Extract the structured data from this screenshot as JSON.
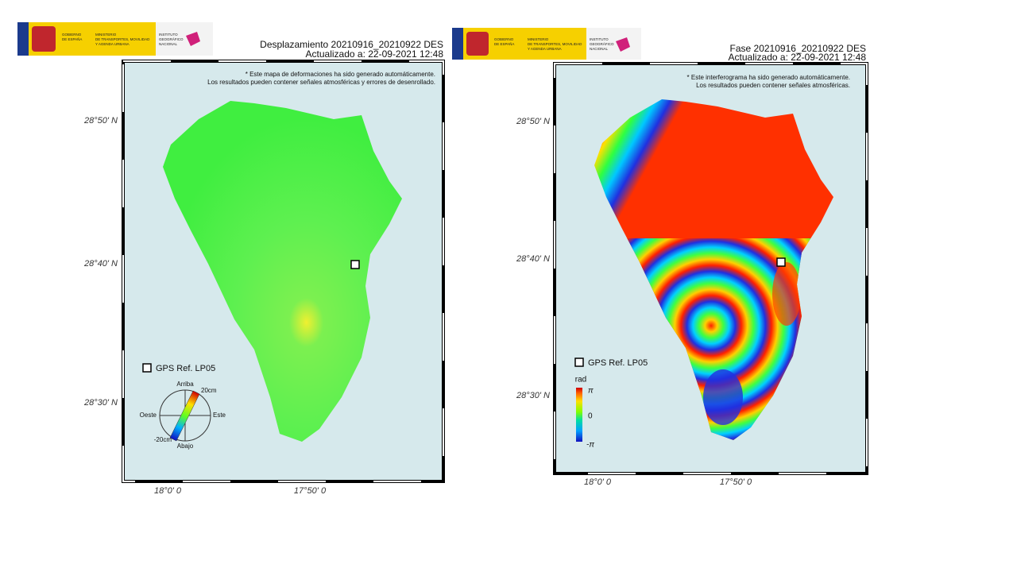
{
  "logo": {
    "government": [
      "GOBIERNO",
      "DE ESPAÑA"
    ],
    "ministry": [
      "MINISTERIO",
      "DE TRANSPORTES, MOVILIDAD",
      "Y AGENDA URBANA"
    ],
    "institute": [
      "INSTITUTO",
      "GEOGRÁFICO",
      "NACIONAL"
    ]
  },
  "left": {
    "title": [
      "Desplazamiento 20210916_20210922 DES",
      "Actualizado a: 22-09-2021 12:48"
    ],
    "note": [
      "* Este mapa de deformaciones ha sido generado automáticamente.",
      "Los resultados pueden contener señales atmosféricas y errores de desenrollado."
    ],
    "lat_labels": [
      "28°50' N",
      "28°40' N",
      "28°30' N"
    ],
    "lon_labels": [
      "18°0' 0",
      "17°50' 0"
    ],
    "gps_legend": "GPS Ref. LP05",
    "compass": {
      "up": "Arriba",
      "down": "Abajo",
      "west": "Oeste",
      "east": "Este",
      "max": "20cm",
      "min": "-20cm"
    }
  },
  "right": {
    "title": [
      "Fase 20210916_20210922 DES",
      "Actualizado a: 22-09-2021 12:48"
    ],
    "note": [
      "* Este interferograma ha sido generado automáticamente.",
      "Los resultados pueden contener señales atmosféricas."
    ],
    "lat_labels": [
      "28°50' N",
      "28°40' N",
      "28°30' N"
    ],
    "lon_labels": [
      "18°0' 0",
      "17°50' 0"
    ],
    "gps_legend": "GPS Ref. LP05",
    "colorbar": {
      "unit": "rad",
      "top": "π",
      "middle": "0",
      "bottom": "-π"
    }
  }
}
